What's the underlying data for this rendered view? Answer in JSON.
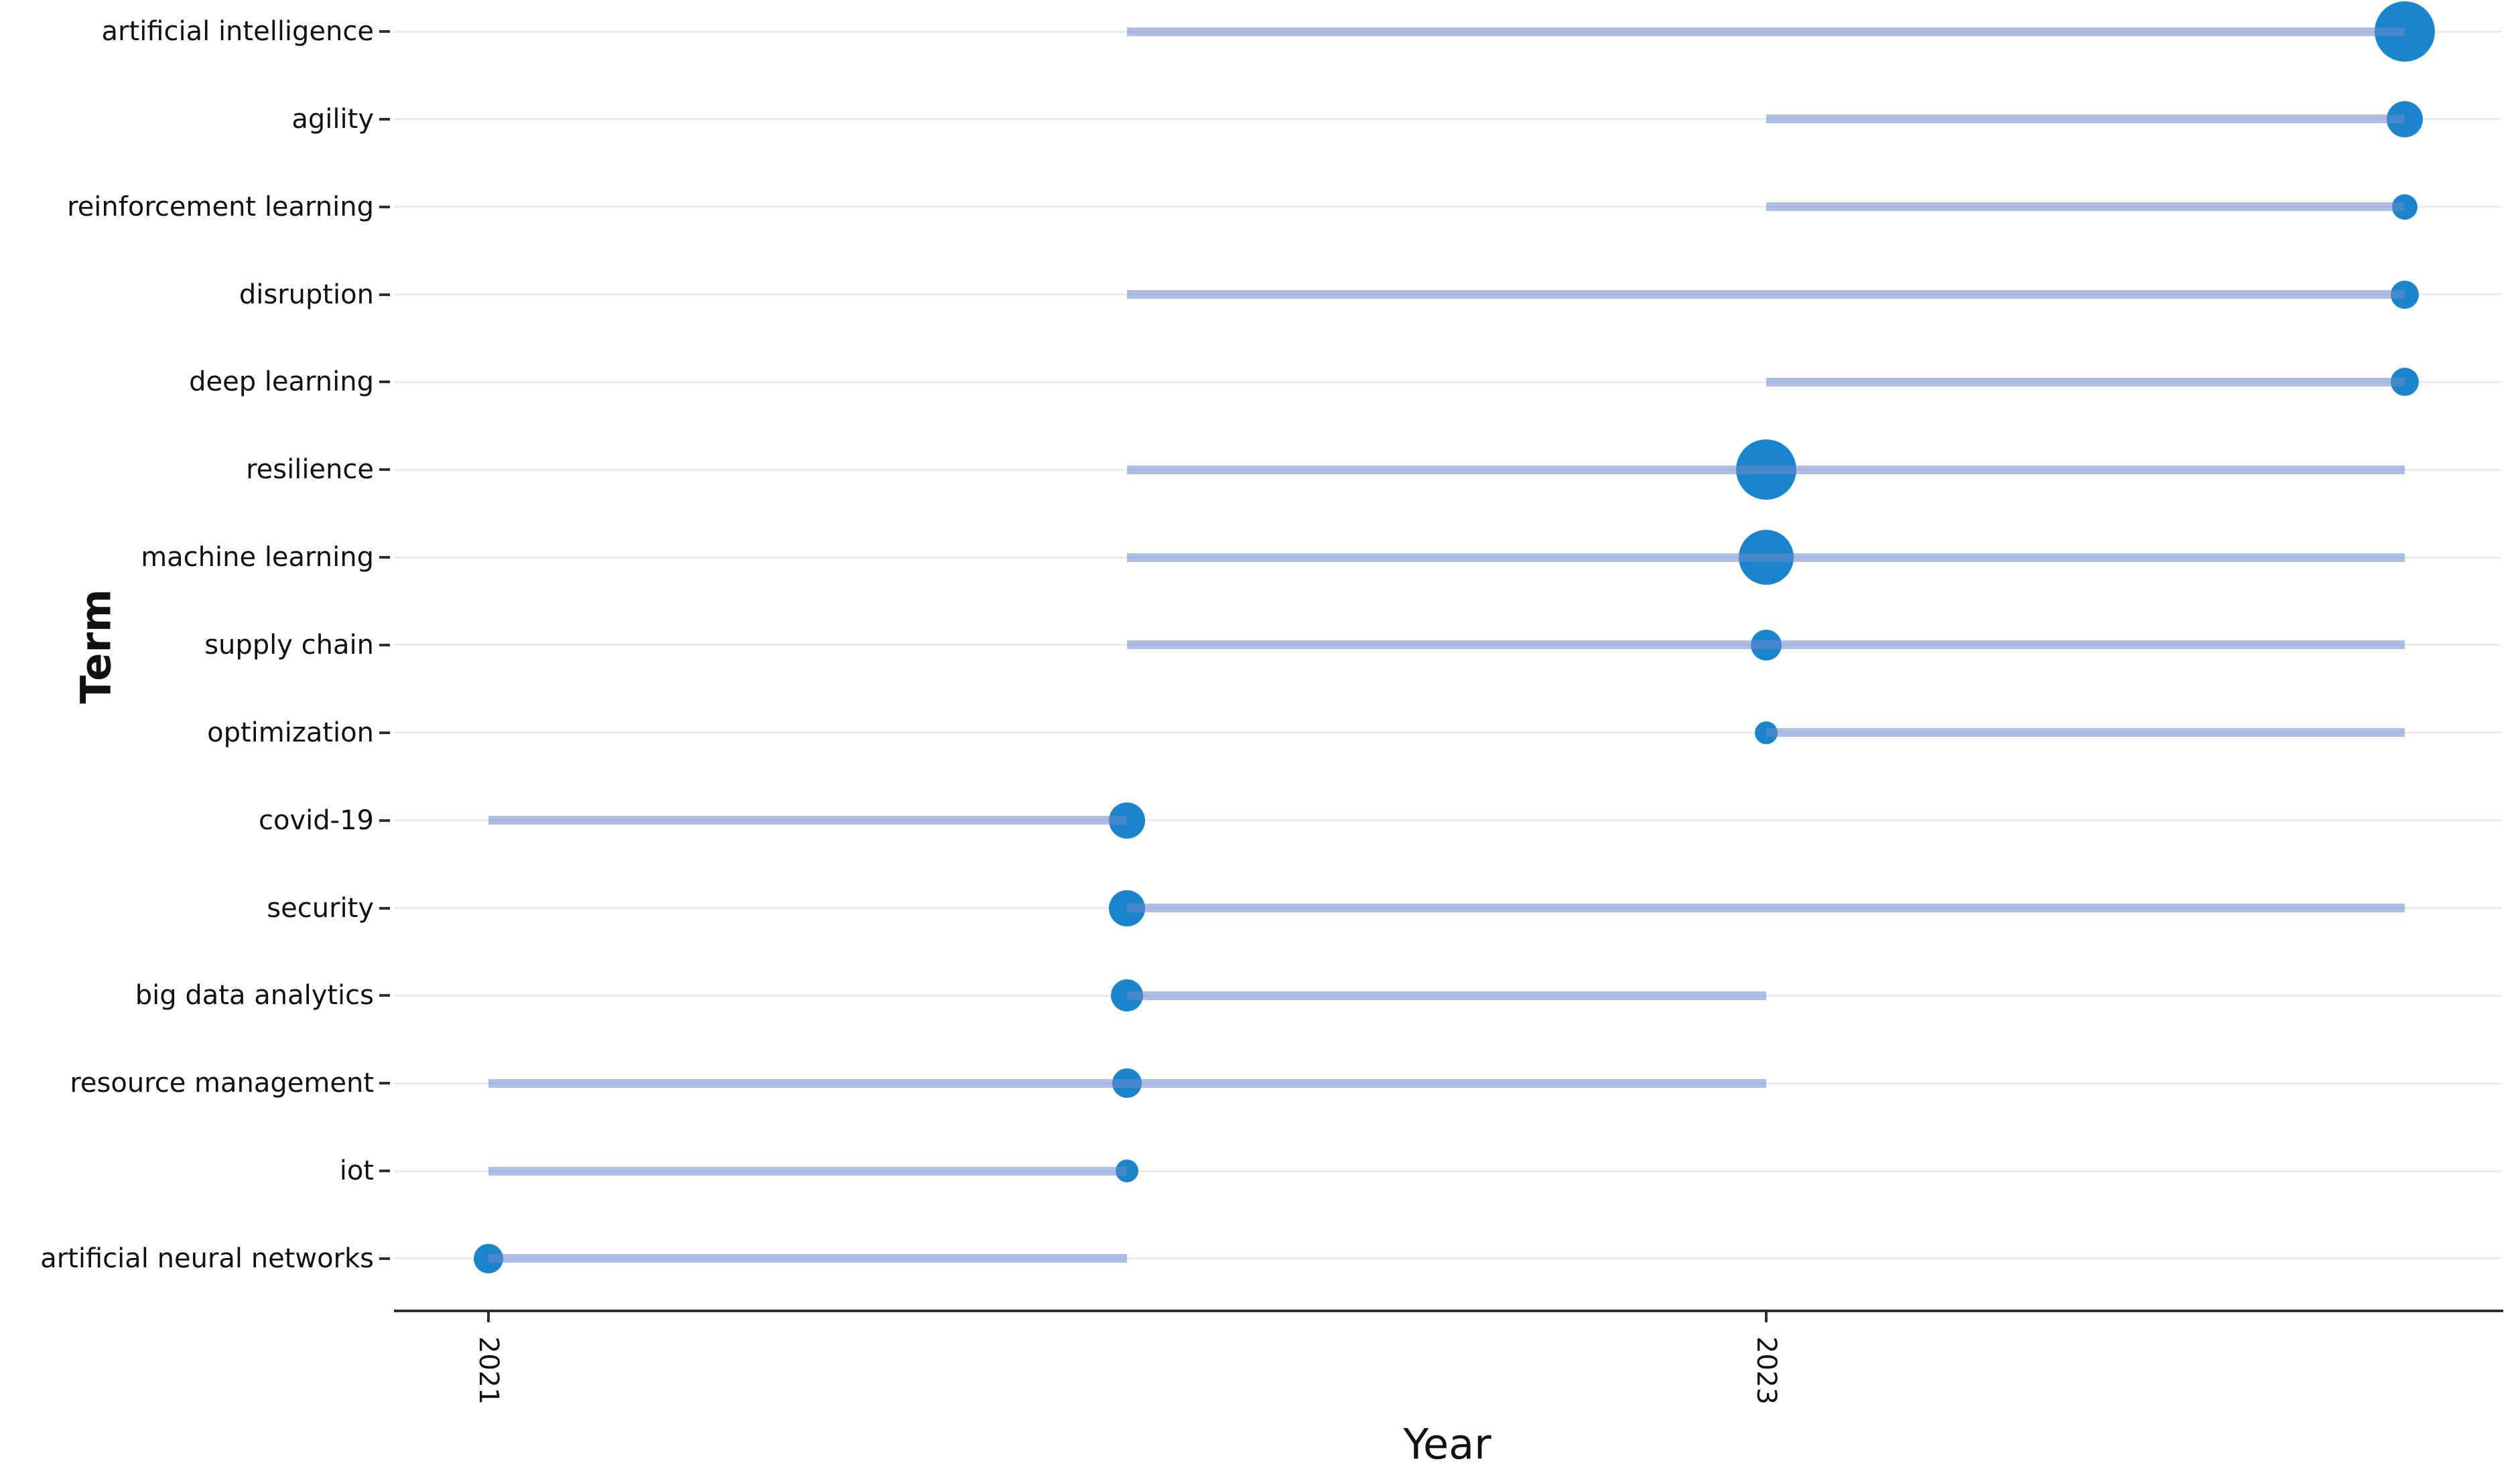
{
  "chart_data": {
    "type": "scatter",
    "variant": "trend-topics-timeline",
    "title": "",
    "xlabel": "Year",
    "ylabel": "Term",
    "x_ticks": [
      "2021",
      "2023"
    ],
    "x_tick_years": [
      2021,
      2023
    ],
    "x_axis_range": [
      2020.85,
      2024.15
    ],
    "grid": "horizontal-major-only",
    "legend": "none",
    "colors": {
      "bubble": "#1a85ca",
      "line": "#6e88cf",
      "line_alpha": 0.55,
      "gridline": "#ebebeb",
      "axis": "#2e2e2e",
      "text": "#111111",
      "background": "#ffffff"
    },
    "terms": [
      {
        "term": "artificial intelligence",
        "year_start": 2022,
        "year_end": 2024,
        "peak_year": 2024,
        "bubble_radius_px": 45
      },
      {
        "term": "agility",
        "year_start": 2023,
        "year_end": 2024,
        "peak_year": 2024,
        "bubble_radius_px": 27
      },
      {
        "term": "reinforcement learning",
        "year_start": 2023,
        "year_end": 2024,
        "peak_year": 2024,
        "bubble_radius_px": 19
      },
      {
        "term": "disruption",
        "year_start": 2022,
        "year_end": 2024,
        "peak_year": 2024,
        "bubble_radius_px": 21
      },
      {
        "term": "deep learning",
        "year_start": 2023,
        "year_end": 2024,
        "peak_year": 2024,
        "bubble_radius_px": 21
      },
      {
        "term": "resilience",
        "year_start": 2022,
        "year_end": 2024,
        "peak_year": 2023,
        "bubble_radius_px": 45
      },
      {
        "term": "machine learning",
        "year_start": 2022,
        "year_end": 2024,
        "peak_year": 2023,
        "bubble_radius_px": 41
      },
      {
        "term": "supply chain",
        "year_start": 2022,
        "year_end": 2024,
        "peak_year": 2023,
        "bubble_radius_px": 23
      },
      {
        "term": "optimization",
        "year_start": 2023,
        "year_end": 2024,
        "peak_year": 2023,
        "bubble_radius_px": 17
      },
      {
        "term": "covid-19",
        "year_start": 2021,
        "year_end": 2022,
        "peak_year": 2022,
        "bubble_radius_px": 27
      },
      {
        "term": "security",
        "year_start": 2022,
        "year_end": 2024,
        "peak_year": 2022,
        "bubble_radius_px": 27
      },
      {
        "term": "big data analytics",
        "year_start": 2022,
        "year_end": 2023,
        "peak_year": 2022,
        "bubble_radius_px": 24
      },
      {
        "term": "resource management",
        "year_start": 2021,
        "year_end": 2023,
        "peak_year": 2022,
        "bubble_radius_px": 22
      },
      {
        "term": "iot",
        "year_start": 2021,
        "year_end": 2022,
        "peak_year": 2022,
        "bubble_radius_px": 17
      },
      {
        "term": "artificial neural networks",
        "year_start": 2021,
        "year_end": 2022,
        "peak_year": 2021,
        "bubble_radius_px": 22
      }
    ]
  }
}
